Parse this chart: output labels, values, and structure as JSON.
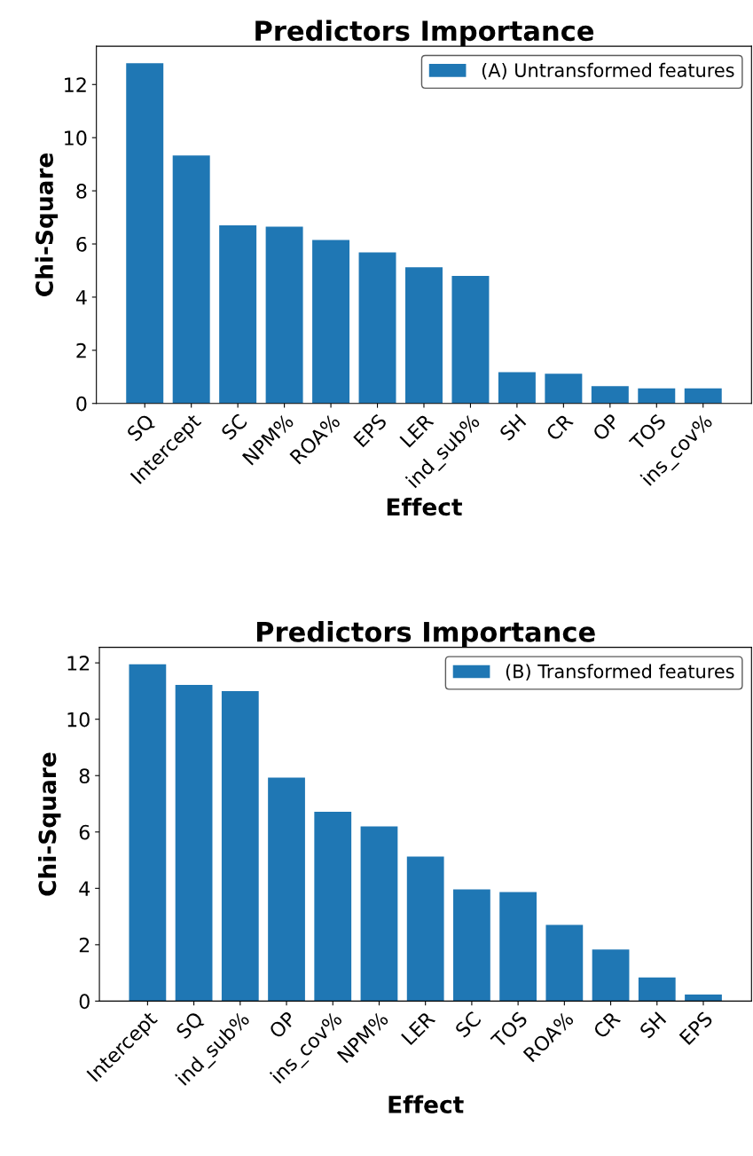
{
  "chart_data": [
    {
      "type": "bar",
      "title": "Predictors Importance",
      "xlabel": "Effect",
      "ylabel": "Chi-Square",
      "categories": [
        "SQ",
        "Intercept",
        "SC",
        "NPM%",
        "ROA%",
        "EPS",
        "LER",
        "ind_sub%",
        "SH",
        "CR",
        "OP",
        "TOS",
        "ins_cov%"
      ],
      "series": [
        {
          "name": "(A) Untransformed features",
          "color": "#1f77b4",
          "values": [
            12.8,
            9.33,
            6.7,
            6.65,
            6.15,
            5.68,
            5.12,
            4.8,
            1.18,
            1.12,
            0.65,
            0.57,
            0.57
          ]
        }
      ],
      "ylim": [
        0,
        13.44
      ],
      "yticks": [
        0,
        2,
        4,
        6,
        8,
        10,
        12
      ],
      "legend": "top right",
      "grid": false
    },
    {
      "type": "bar",
      "title": "Predictors Importance",
      "xlabel": "Effect",
      "ylabel": "Chi-Square",
      "categories": [
        "Intercept",
        "SQ",
        "ind_sub%",
        "OP",
        "ins_cov%",
        "NPM%",
        "LER",
        "SC",
        "TOS",
        "ROA%",
        "CR",
        "SH",
        "EPS"
      ],
      "series": [
        {
          "name": "(B) Transformed features",
          "color": "#1f77b4",
          "values": [
            11.95,
            11.22,
            11.0,
            7.93,
            6.72,
            6.2,
            5.13,
            3.96,
            3.87,
            2.7,
            1.83,
            0.84,
            0.23
          ]
        }
      ],
      "ylim": [
        0,
        12.55
      ],
      "yticks": [
        0,
        2,
        4,
        6,
        8,
        10,
        12
      ],
      "legend": "top right",
      "grid": false
    }
  ]
}
